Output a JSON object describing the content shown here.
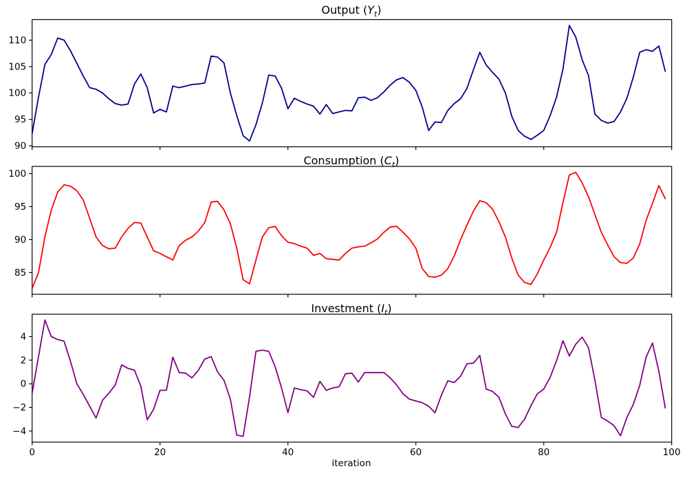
{
  "figure": {
    "background": "#ffffff",
    "text_color": "#000000",
    "xlabel": "iteration"
  },
  "chart_data": [
    {
      "type": "line",
      "name": "output-line",
      "title_prefix": "Output (",
      "symbol": "Y",
      "sub": "t",
      "title_suffix": ")",
      "color": "#00008b",
      "xlim": [
        0,
        100
      ],
      "xticks": [
        0,
        20,
        40,
        60,
        80,
        100
      ],
      "show_xtick_labels": false,
      "ylim": [
        89.8,
        113.9
      ],
      "yticks": [
        90,
        95,
        100,
        105,
        110
      ],
      "grid": false,
      "legend": "none",
      "values": [
        92.3,
        99.2,
        105.4,
        107.3,
        110.4,
        110.0,
        108.0,
        105.6,
        103.2,
        101.0,
        100.7,
        100.0,
        98.9,
        98.0,
        97.7,
        97.9,
        101.7,
        103.6,
        101.0,
        96.2,
        96.9,
        96.4,
        101.3,
        101.0,
        101.3,
        101.6,
        101.7,
        101.9,
        107.0,
        106.8,
        105.7,
        100.0,
        95.7,
        91.9,
        90.9,
        94.0,
        98.1,
        103.4,
        103.2,
        100.9,
        97.0,
        99.0,
        98.4,
        97.9,
        97.5,
        96.0,
        97.8,
        96.1,
        96.4,
        96.7,
        96.6,
        99.1,
        99.2,
        98.6,
        99.1,
        100.2,
        101.5,
        102.5,
        102.9,
        102.0,
        100.5,
        97.3,
        92.9,
        94.5,
        94.4,
        96.7,
        98.0,
        98.9,
        100.9,
        104.4,
        107.7,
        105.3,
        103.9,
        102.6,
        100.0,
        95.6,
        92.9,
        91.8,
        91.2,
        92.0,
        92.9,
        95.7,
        99.2,
        104.5,
        112.8,
        110.6,
        106.3,
        103.3,
        96.0,
        94.8,
        94.3,
        94.6,
        96.4,
        99.0,
        103.0,
        107.7,
        108.2,
        107.9,
        108.9,
        104.1
      ]
    },
    {
      "type": "line",
      "name": "consumption-line",
      "title_prefix": "Consumption (",
      "symbol": "C",
      "sub": "t",
      "title_suffix": ")",
      "color": "#ff0000",
      "xlim": [
        0,
        100
      ],
      "xticks": [
        0,
        20,
        40,
        60,
        80,
        100
      ],
      "show_xtick_labels": false,
      "ylim": [
        81.7,
        101.1
      ],
      "yticks": [
        85,
        90,
        95,
        100
      ],
      "grid": false,
      "legend": "none",
      "values": [
        82.6,
        85.0,
        90.4,
        94.5,
        97.2,
        98.3,
        98.1,
        97.4,
        96.0,
        93.2,
        90.4,
        89.1,
        88.6,
        88.7,
        90.4,
        91.7,
        92.6,
        92.5,
        90.4,
        88.3,
        87.9,
        87.4,
        86.9,
        89.1,
        89.9,
        90.4,
        91.3,
        92.6,
        95.7,
        95.8,
        94.5,
        92.4,
        88.7,
        83.9,
        83.3,
        86.9,
        90.4,
        91.8,
        92.0,
        90.6,
        89.6,
        89.4,
        89.0,
        88.7,
        87.6,
        87.9,
        87.1,
        87.0,
        86.9,
        87.9,
        88.7,
        88.9,
        89.0,
        89.5,
        90.1,
        91.1,
        91.9,
        92.0,
        91.1,
        90.1,
        88.7,
        85.6,
        84.4,
        84.3,
        84.6,
        85.6,
        87.5,
        90.0,
        92.2,
        94.3,
        95.9,
        95.6,
        94.6,
        92.7,
        90.4,
        87.2,
        84.6,
        83.5,
        83.2,
        84.8,
        86.9,
        88.8,
        91.1,
        95.6,
        99.8,
        100.2,
        98.6,
        96.5,
        93.8,
        91.1,
        89.2,
        87.4,
        86.5,
        86.4,
        87.2,
        89.3,
        92.9,
        95.5,
        98.2,
        96.2
      ]
    },
    {
      "type": "line",
      "name": "investment-line",
      "title_prefix": "Investment (",
      "symbol": "I",
      "sub": "t",
      "title_suffix": ")",
      "color": "#800080",
      "xlim": [
        0,
        100
      ],
      "xticks": [
        0,
        20,
        40,
        60,
        80,
        100
      ],
      "show_xtick_labels": true,
      "xlabel": "iteration",
      "ylim": [
        -4.94,
        5.89
      ],
      "yticks": [
        -4,
        -2,
        0,
        2,
        4
      ],
      "grid": false,
      "legend": "none",
      "values": [
        -0.8,
        2.3,
        5.4,
        4.0,
        3.75,
        3.6,
        1.9,
        0.0,
        -0.9,
        -1.9,
        -2.9,
        -1.4,
        -0.8,
        -0.1,
        1.6,
        1.3,
        1.15,
        -0.2,
        -3.05,
        -2.15,
        -0.55,
        -0.55,
        2.25,
        0.95,
        0.9,
        0.5,
        1.15,
        2.1,
        2.3,
        1.0,
        0.3,
        -1.3,
        -4.35,
        -4.45,
        -1.1,
        2.75,
        2.85,
        2.75,
        1.45,
        -0.35,
        -2.45,
        -0.35,
        -0.5,
        -0.6,
        -1.15,
        0.2,
        -0.55,
        -0.35,
        -0.25,
        0.85,
        0.9,
        0.15,
        0.95,
        0.95,
        0.95,
        0.95,
        0.5,
        -0.1,
        -0.85,
        -1.3,
        -1.45,
        -1.6,
        -1.9,
        -2.45,
        -0.95,
        0.25,
        0.1,
        0.65,
        1.7,
        1.75,
        2.4,
        -0.45,
        -0.65,
        -1.15,
        -2.55,
        -3.6,
        -3.7,
        -3.0,
        -1.85,
        -0.85,
        -0.45,
        0.55,
        1.95,
        3.65,
        2.35,
        3.35,
        3.95,
        3.05,
        0.3,
        -2.85,
        -3.15,
        -3.55,
        -4.4,
        -2.85,
        -1.75,
        -0.15,
        2.25,
        3.45,
        1.05,
        -2.05
      ]
    }
  ]
}
